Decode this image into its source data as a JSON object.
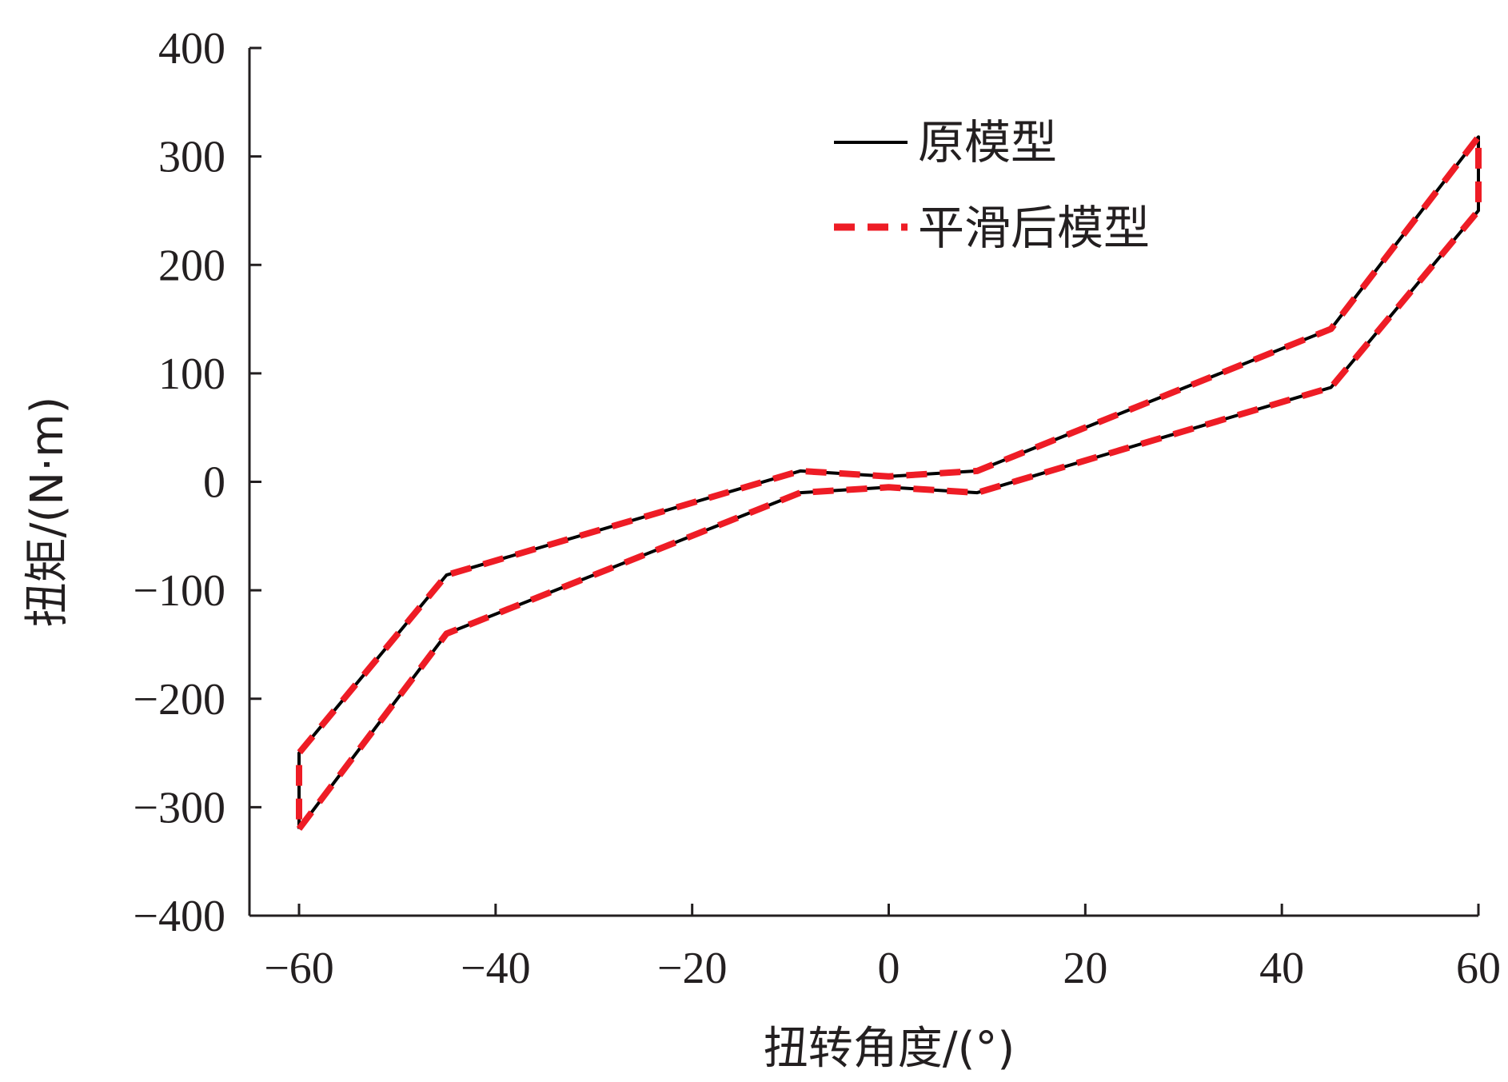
{
  "chart_data": {
    "type": "line",
    "xlabel": "扭转角度/(°)",
    "ylabel": "扭矩/(N·m)",
    "xlim": [
      -60,
      60
    ],
    "ylim": [
      -400,
      400
    ],
    "xticks": [
      -60,
      -40,
      -20,
      0,
      20,
      40,
      60
    ],
    "yticks": [
      -400,
      -300,
      -200,
      -100,
      0,
      100,
      200,
      300,
      400
    ],
    "xtick_labels": [
      "−60",
      "−40",
      "−20",
      "0",
      "20",
      "40",
      "60"
    ],
    "ytick_labels": [
      "−400",
      "−300",
      "−200",
      "−100",
      "0",
      "100",
      "200",
      "300",
      "400"
    ],
    "grid": false,
    "legend_position": "top-right",
    "series": [
      {
        "name": "原模型",
        "color": "#000000",
        "style": "solid",
        "x": [
          -60,
          -45,
          -9,
          0,
          9,
          45,
          60,
          60,
          45,
          9,
          0,
          -9,
          -45,
          -60,
          -60
        ],
        "y": [
          -320,
          -140,
          -10,
          -5,
          -10,
          87,
          250,
          318,
          141,
          10,
          5,
          10,
          -86,
          -250,
          -320
        ]
      },
      {
        "name": "平滑后模型",
        "color": "#ee1c25",
        "style": "dashed",
        "x": [
          -60,
          -45,
          -9,
          0,
          9,
          45,
          60,
          60,
          45,
          9,
          0,
          -9,
          -45,
          -60,
          -60
        ],
        "y": [
          -320,
          -140,
          -10,
          -5,
          -10,
          87,
          250,
          318,
          141,
          10,
          5,
          10,
          -86,
          -250,
          -320
        ]
      }
    ]
  }
}
